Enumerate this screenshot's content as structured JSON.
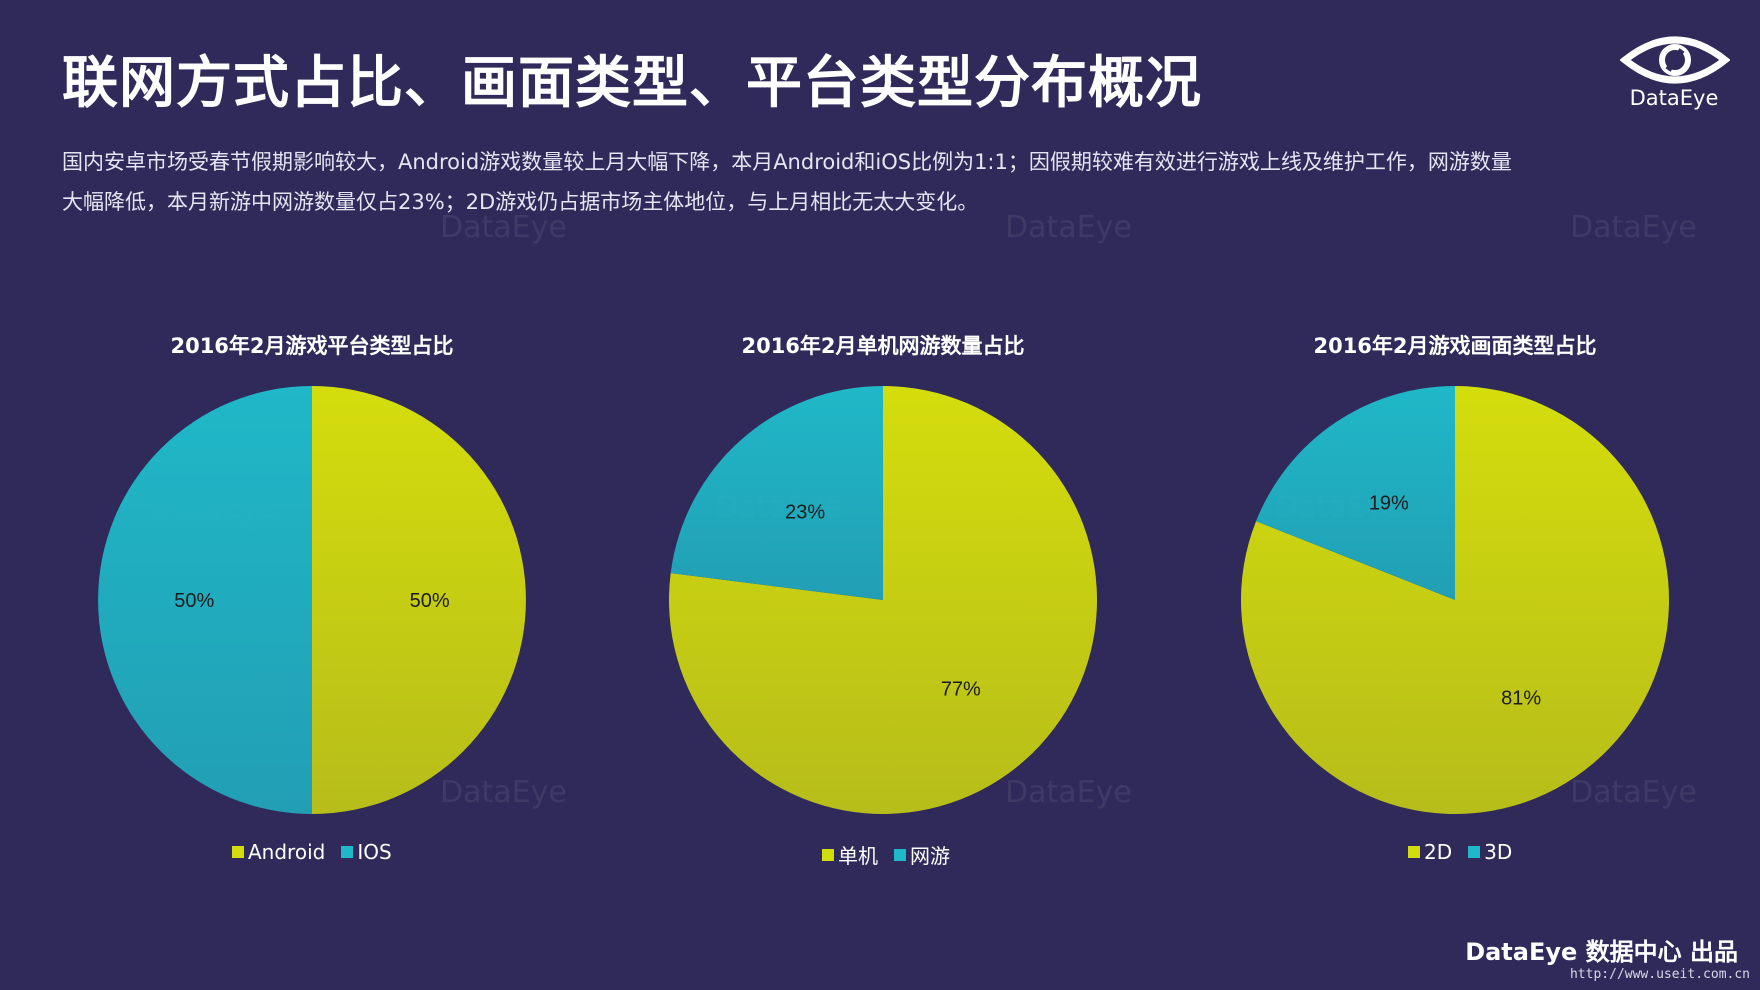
{
  "page": {
    "title": "联网方式占比、画面类型、平台类型分布概况",
    "description_lines": [
      "国内安卓市场受春节假期影响较大，Android游戏数量较上月大幅下降，本月Android和iOS比例为1:1；因假期较难有效进行游戏上线及维护工作，网游数量",
      "大幅降低，本月新游中网游数量仅占23%；2D游戏仍占据市场主体地位，与上月相比无太大变化。"
    ],
    "logo_text": "DataEye",
    "watermark_text": "DataEye",
    "footer": "DataEye 数据中心 出品",
    "footer_url": "http://www.useit.com.cn",
    "colors": {
      "background": "#302a5a",
      "yellow": "#d4dd0c",
      "teal": "#1fb8c8"
    }
  },
  "chart_data": [
    {
      "type": "pie",
      "title": "2016年2月游戏平台类型占比",
      "slices": [
        {
          "label": "Android",
          "value": 50,
          "display": "50%",
          "color": "#d4dd0c"
        },
        {
          "label": "IOS",
          "value": 50,
          "display": "50%",
          "color": "#1fb8c8"
        }
      ]
    },
    {
      "type": "pie",
      "title": "2016年2月单机网游数量占比",
      "slices": [
        {
          "label": "单机",
          "value": 77,
          "display": "77%",
          "color": "#d4dd0c"
        },
        {
          "label": "网游",
          "value": 23,
          "display": "23%",
          "color": "#1fb8c8"
        }
      ]
    },
    {
      "type": "pie",
      "title": "2016年2月游戏画面类型占比",
      "slices": [
        {
          "label": "2D",
          "value": 81,
          "display": "81%",
          "color": "#d4dd0c"
        },
        {
          "label": "3D",
          "value": 19,
          "display": "19%",
          "color": "#1fb8c8"
        }
      ]
    }
  ]
}
